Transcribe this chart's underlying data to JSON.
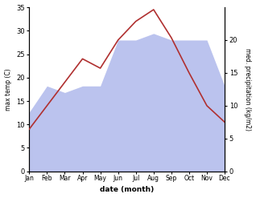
{
  "months": [
    "Jan",
    "Feb",
    "Mar",
    "Apr",
    "May",
    "Jun",
    "Jul",
    "Aug",
    "Sep",
    "Oct",
    "Nov",
    "Dec"
  ],
  "temp": [
    9,
    14,
    19,
    24,
    22,
    28,
    32,
    34.5,
    28.5,
    21,
    14,
    10.5
  ],
  "precip": [
    9,
    13,
    12,
    13,
    13,
    20,
    20,
    21,
    20,
    20,
    20,
    13
  ],
  "temp_color": "#b03030",
  "precip_fill_color": "#bbc3ee",
  "temp_ylim": [
    0,
    35
  ],
  "precip_ylim": [
    0,
    25
  ],
  "temp_yticks": [
    0,
    5,
    10,
    15,
    20,
    25,
    30,
    35
  ],
  "precip_yticks": [
    0,
    5,
    10,
    15,
    20
  ],
  "xlabel": "date (month)",
  "ylabel_left": "max temp (C)",
  "ylabel_right": "med. precipitation (kg/m2)"
}
